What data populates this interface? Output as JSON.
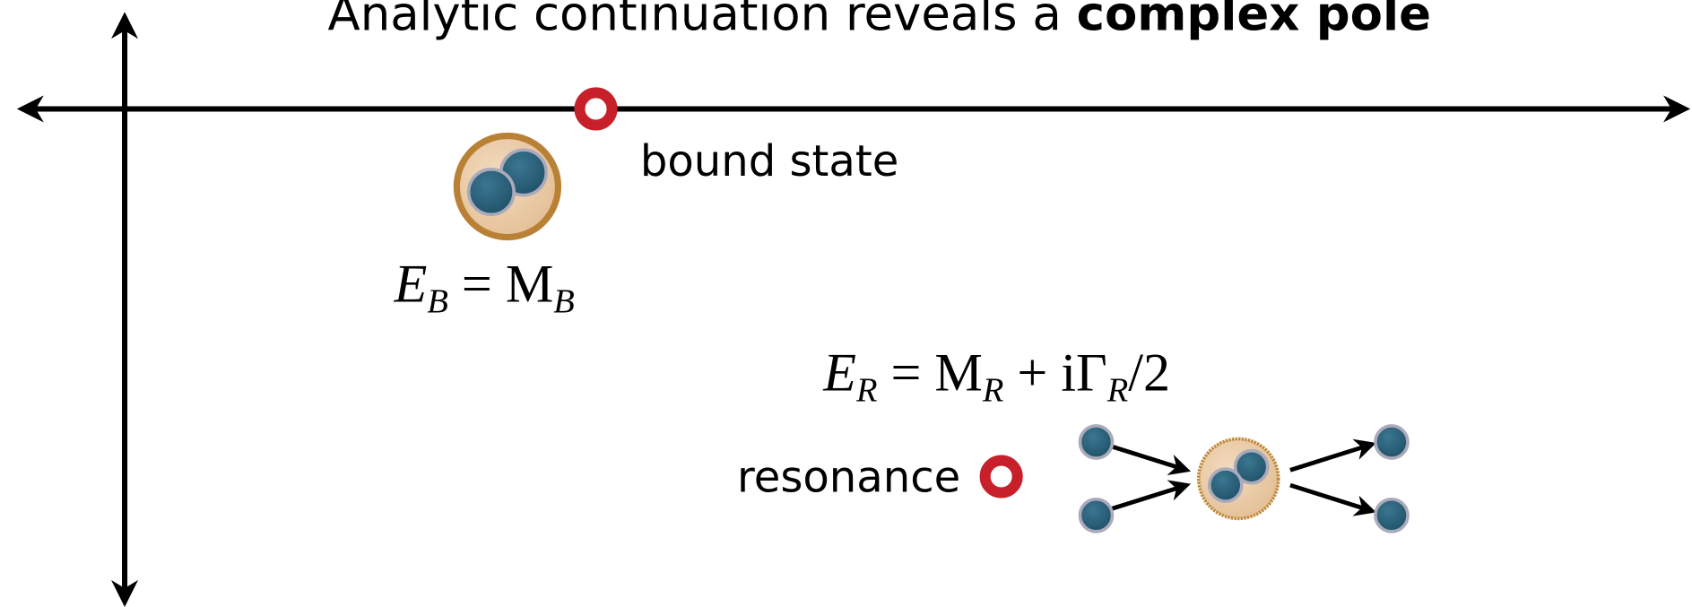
{
  "title": {
    "parts": [
      "Analytic continuation reveals a ",
      "complex pole"
    ]
  },
  "bound_state": {
    "label": "bound state",
    "equation": [
      "E",
      "B",
      " = M",
      "B"
    ]
  },
  "resonance": {
    "label": "resonance",
    "equation": [
      "E",
      "R",
      " = M",
      "R",
      " + iΓ",
      "R",
      "/2"
    ]
  }
}
